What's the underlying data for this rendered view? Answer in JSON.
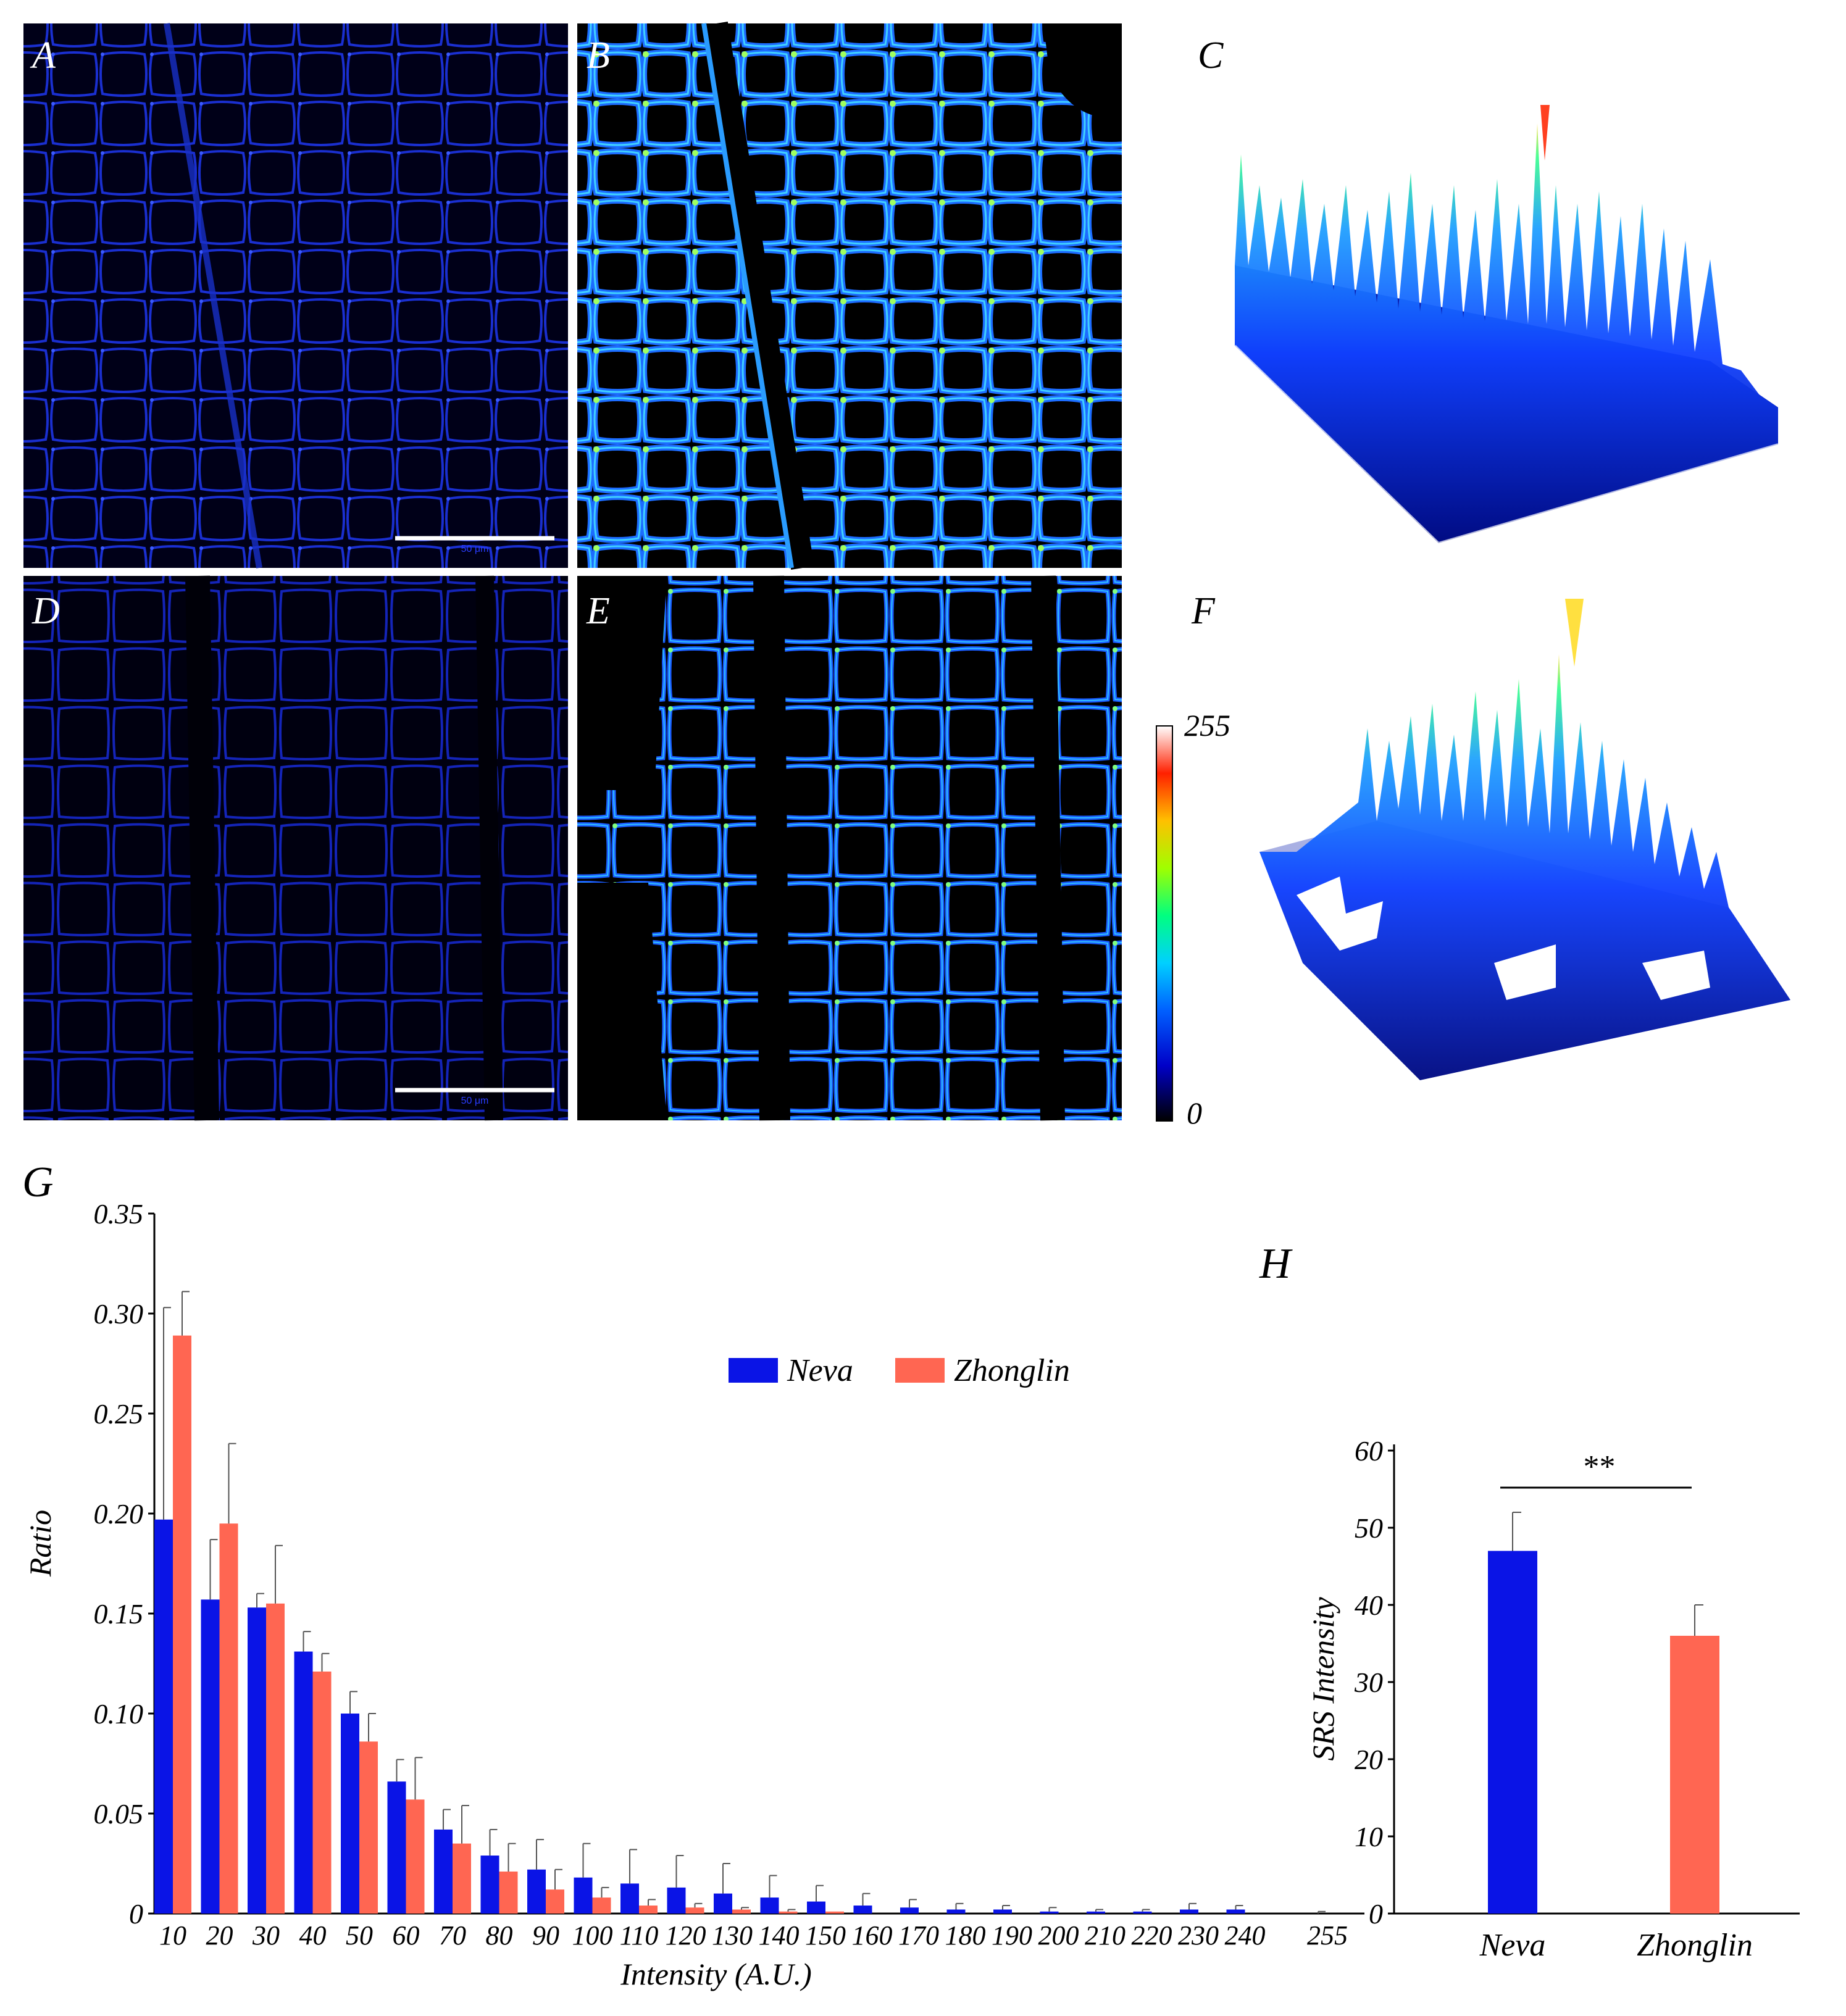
{
  "panels": {
    "A": "A",
    "B": "B",
    "C": "C",
    "D": "D",
    "E": "E",
    "F": "F",
    "G": "G",
    "H": "H"
  },
  "scalebars": {
    "A": "50 μm",
    "D": "50 μm"
  },
  "colorbar": {
    "max_label": "255",
    "min_label": "0",
    "stops": [
      "#000000",
      "#0000c8",
      "#0060ff",
      "#00d0ff",
      "#00ff80",
      "#a0ff00",
      "#ffc000",
      "#ff2000",
      "#ffffff"
    ]
  },
  "colors": {
    "neva": "#0a14e6",
    "zhonglin": "#ff6652",
    "panel_bg": "#000000"
  },
  "chart_data": [
    {
      "type": "bar",
      "panel": "G",
      "title": "",
      "xlabel": "Intensity (A.U.)",
      "ylabel": "Ratio",
      "ylim": [
        0,
        0.35
      ],
      "yticks": [
        "0",
        "0.05",
        "0.10",
        "0.15",
        "0.20",
        "0.25",
        "0.30",
        "0.35"
      ],
      "ytick_values": [
        0,
        0.05,
        0.1,
        0.15,
        0.2,
        0.25,
        0.3,
        0.35
      ],
      "categories": [
        "10",
        "20",
        "30",
        "40",
        "50",
        "60",
        "70",
        "80",
        "90",
        "100",
        "110",
        "120",
        "130",
        "140",
        "150",
        "160",
        "170",
        "180",
        "190",
        "200",
        "210",
        "220",
        "230",
        "240",
        "255"
      ],
      "legend_position": "top-center",
      "series": [
        {
          "name": "Neva",
          "values": [
            0.197,
            0.157,
            0.153,
            0.131,
            0.1,
            0.066,
            0.042,
            0.029,
            0.022,
            0.018,
            0.015,
            0.013,
            0.01,
            0.008,
            0.006,
            0.004,
            0.003,
            0.002,
            0.002,
            0.001,
            0.001,
            0.001,
            0.002,
            0.002,
            0.0
          ],
          "errors": [
            0.106,
            0.03,
            0.007,
            0.01,
            0.011,
            0.011,
            0.01,
            0.013,
            0.015,
            0.017,
            0.017,
            0.016,
            0.015,
            0.011,
            0.008,
            0.006,
            0.004,
            0.003,
            0.002,
            0.002,
            0.001,
            0.001,
            0.003,
            0.002,
            0.001
          ]
        },
        {
          "name": "Zhonglin",
          "values": [
            0.289,
            0.195,
            0.155,
            0.121,
            0.086,
            0.057,
            0.035,
            0.021,
            0.012,
            0.008,
            0.004,
            0.003,
            0.002,
            0.001,
            0.001,
            0.0,
            0.0,
            0.0,
            0.0,
            0.0,
            0.0,
            0.0,
            0.0,
            0.0,
            0.0
          ],
          "errors": [
            0.022,
            0.04,
            0.029,
            0.009,
            0.014,
            0.021,
            0.019,
            0.014,
            0.01,
            0.005,
            0.003,
            0.002,
            0.001,
            0.001,
            0.0,
            0.0,
            0.0,
            0.0,
            0.0,
            0.0,
            0.0,
            0.0,
            0.0,
            0.0,
            0.0
          ]
        }
      ]
    },
    {
      "type": "bar",
      "panel": "H",
      "title": "",
      "xlabel": "",
      "ylabel": "SRS Intensity",
      "ylim": [
        0,
        60
      ],
      "yticks": [
        "0",
        "10",
        "20",
        "30",
        "40",
        "50",
        "60"
      ],
      "ytick_values": [
        0,
        10,
        20,
        30,
        40,
        50,
        60
      ],
      "categories": [
        "Neva",
        "Zhonglin"
      ],
      "values": [
        47,
        36
      ],
      "errors": [
        5,
        4
      ],
      "significance": "**"
    }
  ]
}
